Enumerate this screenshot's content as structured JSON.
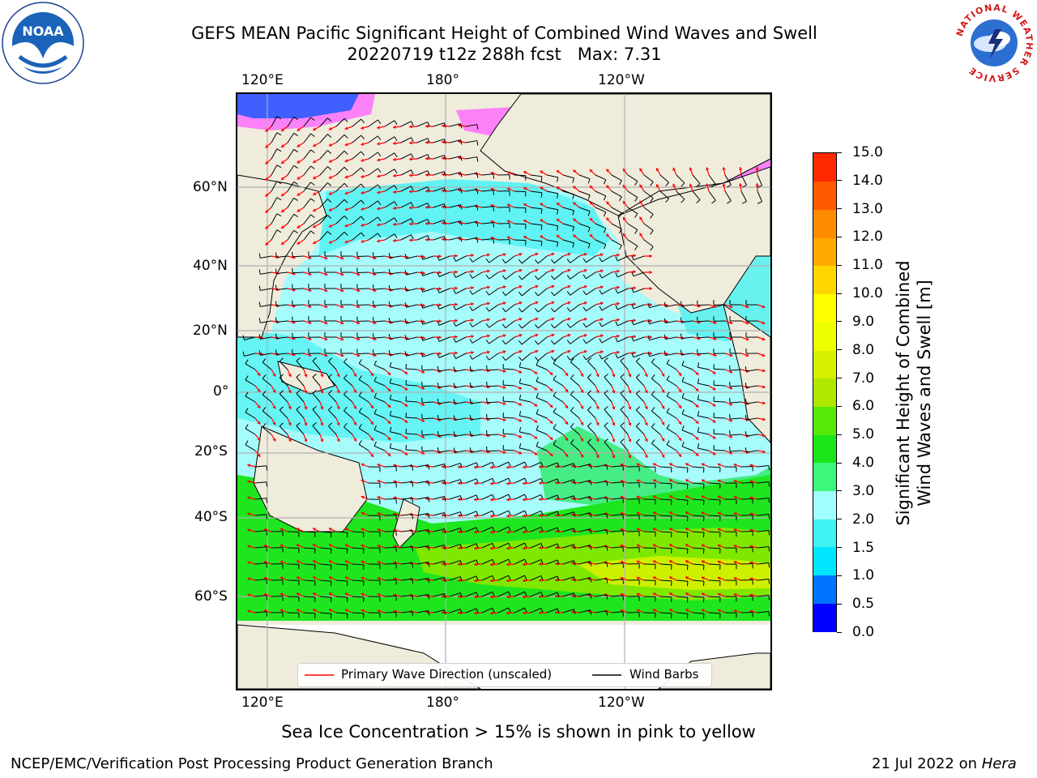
{
  "header": {
    "title_line1": "GEFS MEAN Pacific Significant Height of Combined Wind Waves and Swell",
    "title_line2": "20220719 t12z 288h fcst   Max: 7.31",
    "left_logo_text": "NOAA",
    "left_logo_ring": "NATIONAL OCEANIC AND ATMOSPHERIC ADMINISTRATION · U.S. DEPARTMENT OF COMMERCE",
    "right_logo_ring": "NATIONAL WEATHER SERVICE"
  },
  "map": {
    "lon_labels_top": [
      "120°E",
      "180°",
      "120°W"
    ],
    "lon_labels_bottom": [
      "120°E",
      "180°",
      "120°W"
    ],
    "lat_labels": [
      "60°N",
      "40°N",
      "20°N",
      "0°",
      "20°S",
      "40°S",
      "60°S"
    ],
    "legend": {
      "wave_direction": "Primary Wave Direction (unscaled)",
      "wind_barbs": "Wind Barbs"
    },
    "colors": {
      "land": "#efecdc",
      "ice_free_ocean": "#ffffff",
      "grid": "#b0b0b0",
      "wave_arrow": "#ff0000",
      "barb": "#000000"
    }
  },
  "colorbar": {
    "label_line1": "Significant Height of Combined",
    "label_line2": "Wind Waves and Swell [m]",
    "ticks": [
      "0.0",
      "0.5",
      "1.0",
      "1.5",
      "2.0",
      "3.0",
      "4.0",
      "5.0",
      "6.0",
      "7.0",
      "8.0",
      "9.0",
      "10.0",
      "11.0",
      "12.0",
      "13.0",
      "14.0",
      "15.0"
    ],
    "colors": [
      "#0000ff",
      "#0073ff",
      "#00e6ff",
      "#3ff2f2",
      "#a0ffff",
      "#3cf87a",
      "#19e619",
      "#57e80a",
      "#b0e800",
      "#d6f000",
      "#eeff00",
      "#ffff00",
      "#ffd700",
      "#ffaa00",
      "#ff8c00",
      "#ff5a00",
      "#ff2800"
    ]
  },
  "notes": {
    "ice_note": "Sea Ice Concentration > 15% is shown in pink to yellow"
  },
  "footer": {
    "left": "NCEP/EMC/Verification Post Processing Product Generation Branch",
    "right_date": "21 Jul 2022 on ",
    "right_host": "Hera"
  }
}
